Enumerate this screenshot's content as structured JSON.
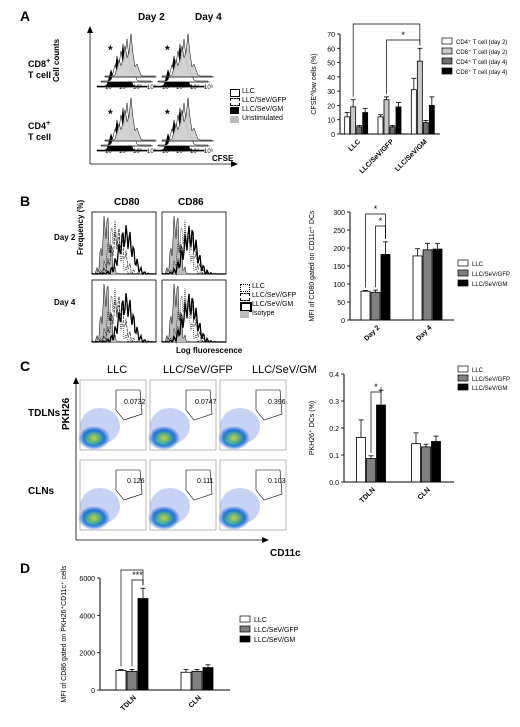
{
  "panels": {
    "A": {
      "label": "A",
      "days": [
        "Day 2",
        "Day 4"
      ],
      "rows": [
        "CD8+ T cell",
        "CD4+ T cell"
      ],
      "y_axis": "Cell counts",
      "x_axis": "CFSE",
      "tick_labels": [
        "10⁰",
        "10¹",
        "10²",
        "10³"
      ],
      "legend": [
        "LLC",
        "LLC/SeV/GFP",
        "LLC/SeV/GM",
        "Unstimulated"
      ]
    },
    "B": {
      "label": "B",
      "markers": [
        "CD80",
        "CD86"
      ],
      "rows": [
        "Day 2",
        "Day 4"
      ],
      "y_axis": "Frequency (%)",
      "x_axis": "Log fluorescence",
      "legend": [
        "LLC",
        "LLC/SeV/GFP",
        "LLC/SeV/GM",
        "Isotype"
      ]
    },
    "C": {
      "label": "C",
      "columns": [
        "LLC",
        "LLC/SeV/GFP",
        "LLC/SeV/GM"
      ],
      "rows": [
        "TDLNs",
        "CLNs"
      ],
      "y_axis": "PKH26",
      "x_axis": "CD11c",
      "gate_values": [
        [
          "0.0732",
          "0.0747",
          "0.396"
        ],
        [
          "0.126",
          "0.111",
          "0.103"
        ]
      ]
    },
    "D": {
      "label": "D"
    }
  },
  "chart_data": [
    {
      "id": "A-bar",
      "type": "bar",
      "categories": [
        "LLC",
        "LLC/SeV/GFP",
        "LLC/SeV/GM"
      ],
      "series": [
        {
          "name": "CD4⁺ T cell (day 2)",
          "values": [
            12,
            12,
            31
          ],
          "errors": [
            3,
            1.5,
            8
          ],
          "color": "#ffffff"
        },
        {
          "name": "CD8⁺ T cell (day 2)",
          "values": [
            19,
            24,
            51
          ],
          "errors": [
            5,
            2,
            9
          ],
          "color": "#c8c8c8"
        },
        {
          "name": "CD4⁺ T cell (day 4)",
          "values": [
            5,
            5,
            8
          ],
          "errors": [
            1,
            1,
            1.5
          ],
          "color": "#707070"
        },
        {
          "name": "CD8⁺ T cell (day 4)",
          "values": [
            15,
            19,
            20
          ],
          "errors": [
            3,
            3,
            6
          ],
          "color": "#000000"
        }
      ],
      "ylabel": "CFSE^low cells (%)",
      "ylim": [
        0,
        70
      ],
      "yticks": [
        0,
        10,
        20,
        30,
        40,
        50,
        60,
        70
      ],
      "significance": [
        "*",
        "*"
      ]
    },
    {
      "id": "B-bar",
      "type": "bar",
      "categories": [
        "Day 2",
        "Day 4"
      ],
      "series": [
        {
          "name": "LLC",
          "values": [
            80,
            178
          ],
          "errors": [
            2,
            20
          ],
          "color": "#ffffff"
        },
        {
          "name": "LLC/SeV/GFP",
          "values": [
            77,
            195
          ],
          "errors": [
            6,
            18
          ],
          "color": "#808080"
        },
        {
          "name": "LLC/SeV/GM",
          "values": [
            182,
            197
          ],
          "errors": [
            35,
            15
          ],
          "color": "#000000"
        }
      ],
      "ylabel": "MFI of CD80 gated on CD11c⁺ DCs",
      "ylim": [
        0,
        300
      ],
      "yticks": [
        0,
        50,
        100,
        150,
        200,
        250,
        300
      ],
      "significance": [
        "*",
        "*"
      ]
    },
    {
      "id": "C-bar",
      "type": "bar",
      "categories": [
        "TDLN",
        "CLN"
      ],
      "series": [
        {
          "name": "LLC",
          "values": [
            0.165,
            0.142
          ],
          "errors": [
            0.065,
            0.04
          ],
          "color": "#ffffff"
        },
        {
          "name": "LLC/SeV/GFP",
          "values": [
            0.087,
            0.13
          ],
          "errors": [
            0.01,
            0.01
          ],
          "color": "#808080"
        },
        {
          "name": "LLC/SeV/GM",
          "values": [
            0.285,
            0.15
          ],
          "errors": [
            0.055,
            0.02
          ],
          "color": "#000000"
        }
      ],
      "ylabel": "PKH26⁺ DCs (%)",
      "ylim": [
        0,
        0.4
      ],
      "yticks": [
        0.0,
        0.1,
        0.2,
        0.3,
        0.4
      ],
      "significance": [
        "*"
      ]
    },
    {
      "id": "D-bar",
      "type": "bar",
      "categories": [
        "TDLN",
        "CLN"
      ],
      "series": [
        {
          "name": "LLC",
          "values": [
            1050,
            950
          ],
          "errors": [
            50,
            150
          ],
          "color": "#ffffff"
        },
        {
          "name": "LLC/SeV/GFP",
          "values": [
            1000,
            1000
          ],
          "errors": [
            100,
            100
          ],
          "color": "#808080"
        },
        {
          "name": "LLC/SeV/GM",
          "values": [
            4900,
            1200
          ],
          "errors": [
            550,
            150
          ],
          "color": "#000000"
        }
      ],
      "ylabel": "MFI of CD86 gated on PKH26⁺CD11c⁺ cells",
      "ylim": [
        0,
        6000
      ],
      "yticks": [
        0,
        2000,
        4000,
        6000
      ],
      "significance": [
        "***",
        "***"
      ]
    }
  ]
}
